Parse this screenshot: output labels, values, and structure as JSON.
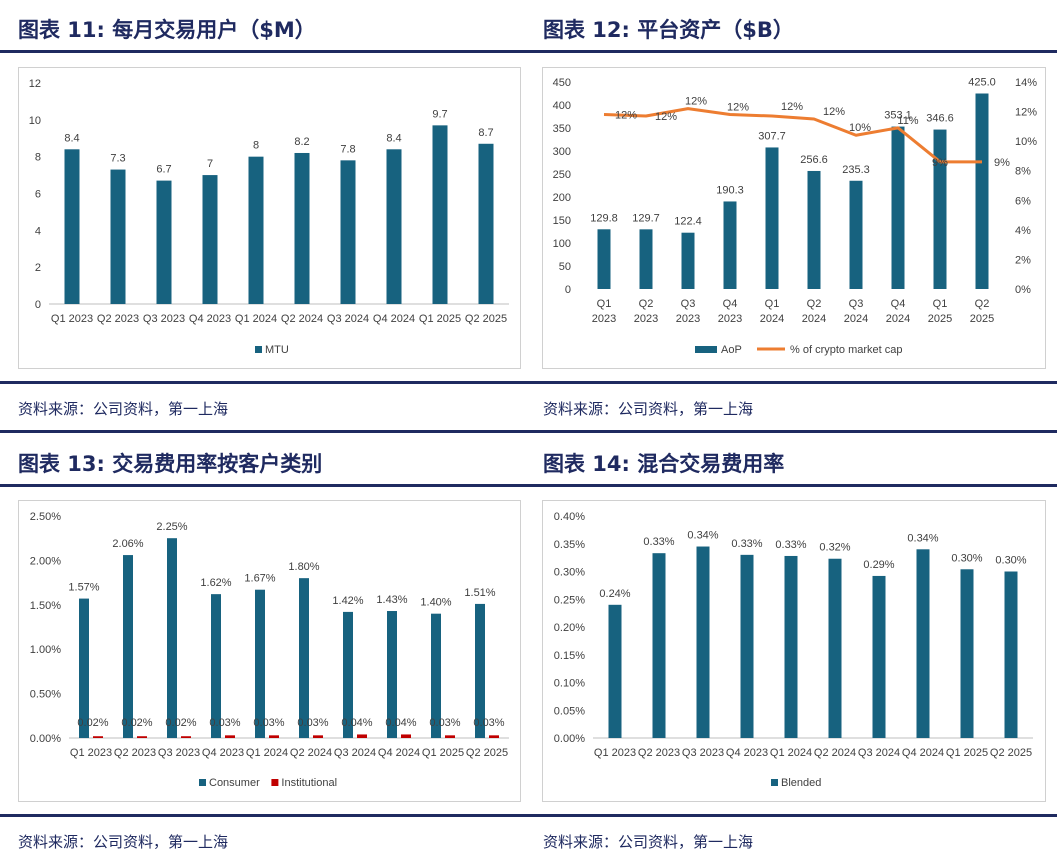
{
  "colors": {
    "navy": "#1f2a60",
    "bar": "#17627f",
    "line": "#ed7d31",
    "red": "#c00000"
  },
  "source_text": "资料来源：公司资料，第一上海",
  "chart_data": [
    {
      "id": "c11",
      "title": "图表 11: 每月交易用户（$M）",
      "type": "bar",
      "categories": [
        "Q1 2023",
        "Q2 2023",
        "Q3 2023",
        "Q4 2023",
        "Q1 2024",
        "Q2 2024",
        "Q3 2024",
        "Q4 2024",
        "Q1 2025",
        "Q2 2025"
      ],
      "series": [
        {
          "name": "MTU",
          "values": [
            8.4,
            7.3,
            6.7,
            7,
            8,
            8.2,
            7.8,
            8.4,
            9.7,
            8.7
          ],
          "labels": [
            "8.4",
            "7.3",
            "6.7",
            "7",
            "8",
            "8.2",
            "7.8",
            "8.4",
            "9.7",
            "8.7"
          ]
        }
      ],
      "ylim": [
        0,
        12
      ],
      "yticks": [
        "0",
        "2",
        "4",
        "6",
        "8",
        "10",
        "12"
      ],
      "legend": [
        "MTU"
      ]
    },
    {
      "id": "c12",
      "title": "图表 12: 平台资产（$B）",
      "type": "bar+line",
      "categories": [
        [
          "Q1",
          "2023"
        ],
        [
          "Q2",
          "2023"
        ],
        [
          "Q3",
          "2023"
        ],
        [
          "Q4",
          "2023"
        ],
        [
          "Q1",
          "2024"
        ],
        [
          "Q2",
          "2024"
        ],
        [
          "Q3",
          "2024"
        ],
        [
          "Q4",
          "2024"
        ],
        [
          "Q1",
          "2025"
        ],
        [
          "Q2",
          "2025"
        ]
      ],
      "series": [
        {
          "name": "AoP",
          "axis": "left",
          "values": [
            129.8,
            129.7,
            122.4,
            190.3,
            307.7,
            256.6,
            235.3,
            353.1,
            346.6,
            425.0
          ],
          "labels": [
            "129.8",
            "129.7",
            "122.4",
            "190.3",
            "307.7",
            "256.6",
            "235.3",
            "353.1",
            "346.6",
            "425.0"
          ]
        },
        {
          "name": "% of crypto market cap",
          "axis": "right",
          "values": [
            11.8,
            11.7,
            12.2,
            11.8,
            11.7,
            11.5,
            10.4,
            10.9,
            8.6,
            8.6
          ],
          "labels": [
            "12%",
            "12%",
            "12%",
            "12%",
            "12%",
            "12%",
            "10%",
            "11%",
            "9%",
            "9%"
          ]
        }
      ],
      "ylim": [
        0,
        450
      ],
      "yticks": [
        "0",
        "50",
        "100",
        "150",
        "200",
        "250",
        "300",
        "350",
        "400",
        "450"
      ],
      "y2lim": [
        0,
        14
      ],
      "y2ticks": [
        "0%",
        "2%",
        "4%",
        "6%",
        "8%",
        "10%",
        "12%",
        "14%"
      ],
      "legend": [
        "AoP",
        "% of crypto market cap"
      ]
    },
    {
      "id": "c13",
      "title": "图表 13: 交易费用率按客户类别",
      "type": "bar",
      "categories": [
        "Q1 2023",
        "Q2 2023",
        "Q3 2023",
        "Q4 2023",
        "Q1 2024",
        "Q2 2024",
        "Q3 2024",
        "Q4 2024",
        "Q1 2025",
        "Q2 2025"
      ],
      "series": [
        {
          "name": "Consumer",
          "values": [
            1.57,
            2.06,
            2.25,
            1.62,
            1.67,
            1.8,
            1.42,
            1.43,
            1.4,
            1.51
          ],
          "labels": [
            "1.57%",
            "2.06%",
            "2.25%",
            "1.62%",
            "1.67%",
            "1.80%",
            "1.42%",
            "1.43%",
            "1.40%",
            "1.51%"
          ]
        },
        {
          "name": "Institutional",
          "values": [
            0.02,
            0.02,
            0.02,
            0.03,
            0.03,
            0.03,
            0.04,
            0.04,
            0.03,
            0.03
          ],
          "labels": [
            "0.02%",
            "0.02%",
            "0.02%",
            "0.03%",
            "0.03%",
            "0.03%",
            "0.04%",
            "0.04%",
            "0.03%",
            "0.03%"
          ]
        }
      ],
      "ylim": [
        0,
        2.5
      ],
      "yticks": [
        "0.00%",
        "0.50%",
        "1.00%",
        "1.50%",
        "2.00%",
        "2.50%"
      ],
      "legend": [
        "Consumer",
        "Institutional"
      ]
    },
    {
      "id": "c14",
      "title": "图表 14: 混合交易费用率",
      "type": "bar",
      "categories": [
        "Q1 2023",
        "Q2 2023",
        "Q3 2023",
        "Q4 2023",
        "Q1 2024",
        "Q2 2024",
        "Q3 2024",
        "Q4 2024",
        "Q1 2025",
        "Q2 2025"
      ],
      "series": [
        {
          "name": "Blended",
          "values": [
            0.24,
            0.333,
            0.345,
            0.33,
            0.328,
            0.323,
            0.292,
            0.34,
            0.304,
            0.3
          ],
          "labels": [
            "0.24%",
            "0.33%",
            "0.34%",
            "0.33%",
            "0.33%",
            "0.32%",
            "0.29%",
            "0.34%",
            "0.30%",
            "0.30%"
          ]
        }
      ],
      "ylim": [
        0,
        0.4
      ],
      "yticks": [
        "0.00%",
        "0.05%",
        "0.10%",
        "0.15%",
        "0.20%",
        "0.25%",
        "0.30%",
        "0.35%",
        "0.40%"
      ],
      "legend": [
        "Blended"
      ]
    }
  ]
}
